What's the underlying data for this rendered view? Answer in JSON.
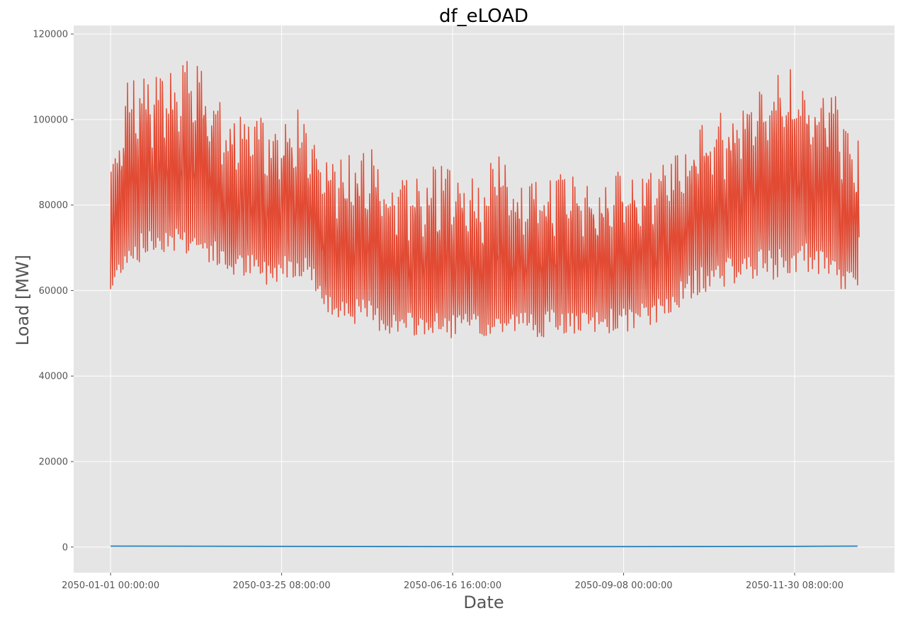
{
  "chart_data": {
    "type": "line",
    "title": "df_eLOAD",
    "xlabel": "Date",
    "ylabel": "Load [MW]",
    "x_range": [
      "2050-01-01 00:00:00",
      "2050-12-31 23:00:00"
    ],
    "xlim": [
      "2049-12-14 00:00:00",
      "2051-01-18 00:00:00"
    ],
    "ylim": [
      -6000,
      122000
    ],
    "xticks": [
      {
        "label": "2050-01-01 00:00:00",
        "value": "2050-01-01 00:00:00"
      },
      {
        "label": "2050-03-25 08:00:00",
        "value": "2050-03-25 08:00:00"
      },
      {
        "label": "2050-06-16 16:00:00",
        "value": "2050-06-16 16:00:00"
      },
      {
        "label": "2050-09-08 00:00:00",
        "value": "2050-09-08 00:00:00"
      },
      {
        "label": "2050-11-30 08:00:00",
        "value": "2050-11-30 08:00:00"
      }
    ],
    "yticks": [
      0,
      20000,
      40000,
      60000,
      80000,
      100000,
      120000
    ],
    "grid": true,
    "background": "#e5e5e5",
    "series": [
      {
        "color": "#e24a33",
        "sampling": "weekly",
        "x": [
          "2050-01-01",
          "2050-01-08",
          "2050-01-15",
          "2050-01-22",
          "2050-01-29",
          "2050-02-05",
          "2050-02-12",
          "2050-02-19",
          "2050-02-26",
          "2050-03-05",
          "2050-03-12",
          "2050-03-19",
          "2050-03-26",
          "2050-04-02",
          "2050-04-09",
          "2050-04-16",
          "2050-04-23",
          "2050-04-30",
          "2050-05-07",
          "2050-05-14",
          "2050-05-21",
          "2050-05-28",
          "2050-06-04",
          "2050-06-11",
          "2050-06-18",
          "2050-06-25",
          "2050-07-02",
          "2050-07-09",
          "2050-07-16",
          "2050-07-23",
          "2050-07-30",
          "2050-08-06",
          "2050-08-13",
          "2050-08-20",
          "2050-08-27",
          "2050-09-03",
          "2050-09-10",
          "2050-09-17",
          "2050-09-24",
          "2050-10-01",
          "2050-10-08",
          "2050-10-15",
          "2050-10-22",
          "2050-10-29",
          "2050-11-05",
          "2050-11-12",
          "2050-11-19",
          "2050-11-26",
          "2050-12-03",
          "2050-12-10",
          "2050-12-17",
          "2050-12-24",
          "2050-12-31"
        ],
        "max": [
          91000,
          108000,
          112000,
          110000,
          112000,
          116000,
          113000,
          108000,
          103000,
          101000,
          103000,
          99000,
          101000,
          103000,
          98000,
          92000,
          91000,
          92000,
          94000,
          89000,
          87000,
          87000,
          89000,
          90000,
          88000,
          87000,
          86000,
          95000,
          85000,
          86000,
          86000,
          88000,
          89000,
          87000,
          86000,
          88000,
          89000,
          90000,
          89000,
          91000,
          95000,
          100000,
          101000,
          103000,
          108000,
          110000,
          111000,
          113000,
          112000,
          110000,
          113000,
          100000,
          97000
        ],
        "min": [
          56000,
          63000,
          64000,
          66000,
          67000,
          66000,
          65000,
          64000,
          61000,
          61000,
          60000,
          59000,
          61000,
          61000,
          60000,
          51000,
          52000,
          50000,
          49000,
          48000,
          47000,
          47000,
          47000,
          46000,
          47000,
          47000,
          46000,
          46000,
          48000,
          48000,
          47000,
          48000,
          47000,
          47000,
          48000,
          48000,
          48000,
          49000,
          50000,
          53000,
          55000,
          57000,
          58000,
          59000,
          59000,
          60000,
          59000,
          60000,
          62000,
          60000,
          58000,
          57000,
          58000
        ]
      },
      {
        "color": "#348abd",
        "sampling": "weekly",
        "x": [
          "2050-01-01",
          "2050-03-25",
          "2050-06-16",
          "2050-09-08",
          "2050-11-30",
          "2050-12-31"
        ],
        "values": [
          200,
          150,
          100,
          100,
          150,
          200
        ]
      }
    ]
  }
}
